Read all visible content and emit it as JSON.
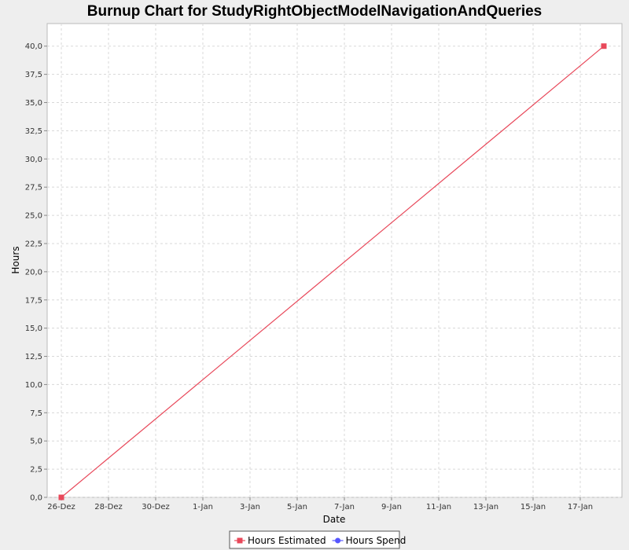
{
  "chart_data": {
    "type": "line",
    "title": "Burnup Chart for StudyRightObjectModelNavigationAndQueries",
    "xlabel": "Date",
    "ylabel": "Hours",
    "ylim": [
      0,
      42
    ],
    "grid": true,
    "legend_position": "bottom",
    "x_ticks": [
      "26-Dez",
      "28-Dez",
      "30-Dez",
      "1-Jan",
      "3-Jan",
      "5-Jan",
      "7-Jan",
      "9-Jan",
      "11-Jan",
      "13-Jan",
      "15-Jan",
      "17-Jan"
    ],
    "y_ticks": [
      "0,0",
      "2,5",
      "5,0",
      "7,5",
      "10,0",
      "12,5",
      "15,0",
      "17,5",
      "20,0",
      "22,5",
      "25,0",
      "27,5",
      "30,0",
      "32,5",
      "35,0",
      "37,5",
      "40,0"
    ],
    "series": [
      {
        "name": "Hours Estimated",
        "color": "#e8485a",
        "marker": "square",
        "points": [
          {
            "x": "2013-12-26",
            "y": 0
          },
          {
            "x": "2014-01-18",
            "y": 40
          }
        ]
      },
      {
        "name": "Hours Spend",
        "color": "#5555ff",
        "marker": "circle",
        "points": []
      }
    ]
  }
}
